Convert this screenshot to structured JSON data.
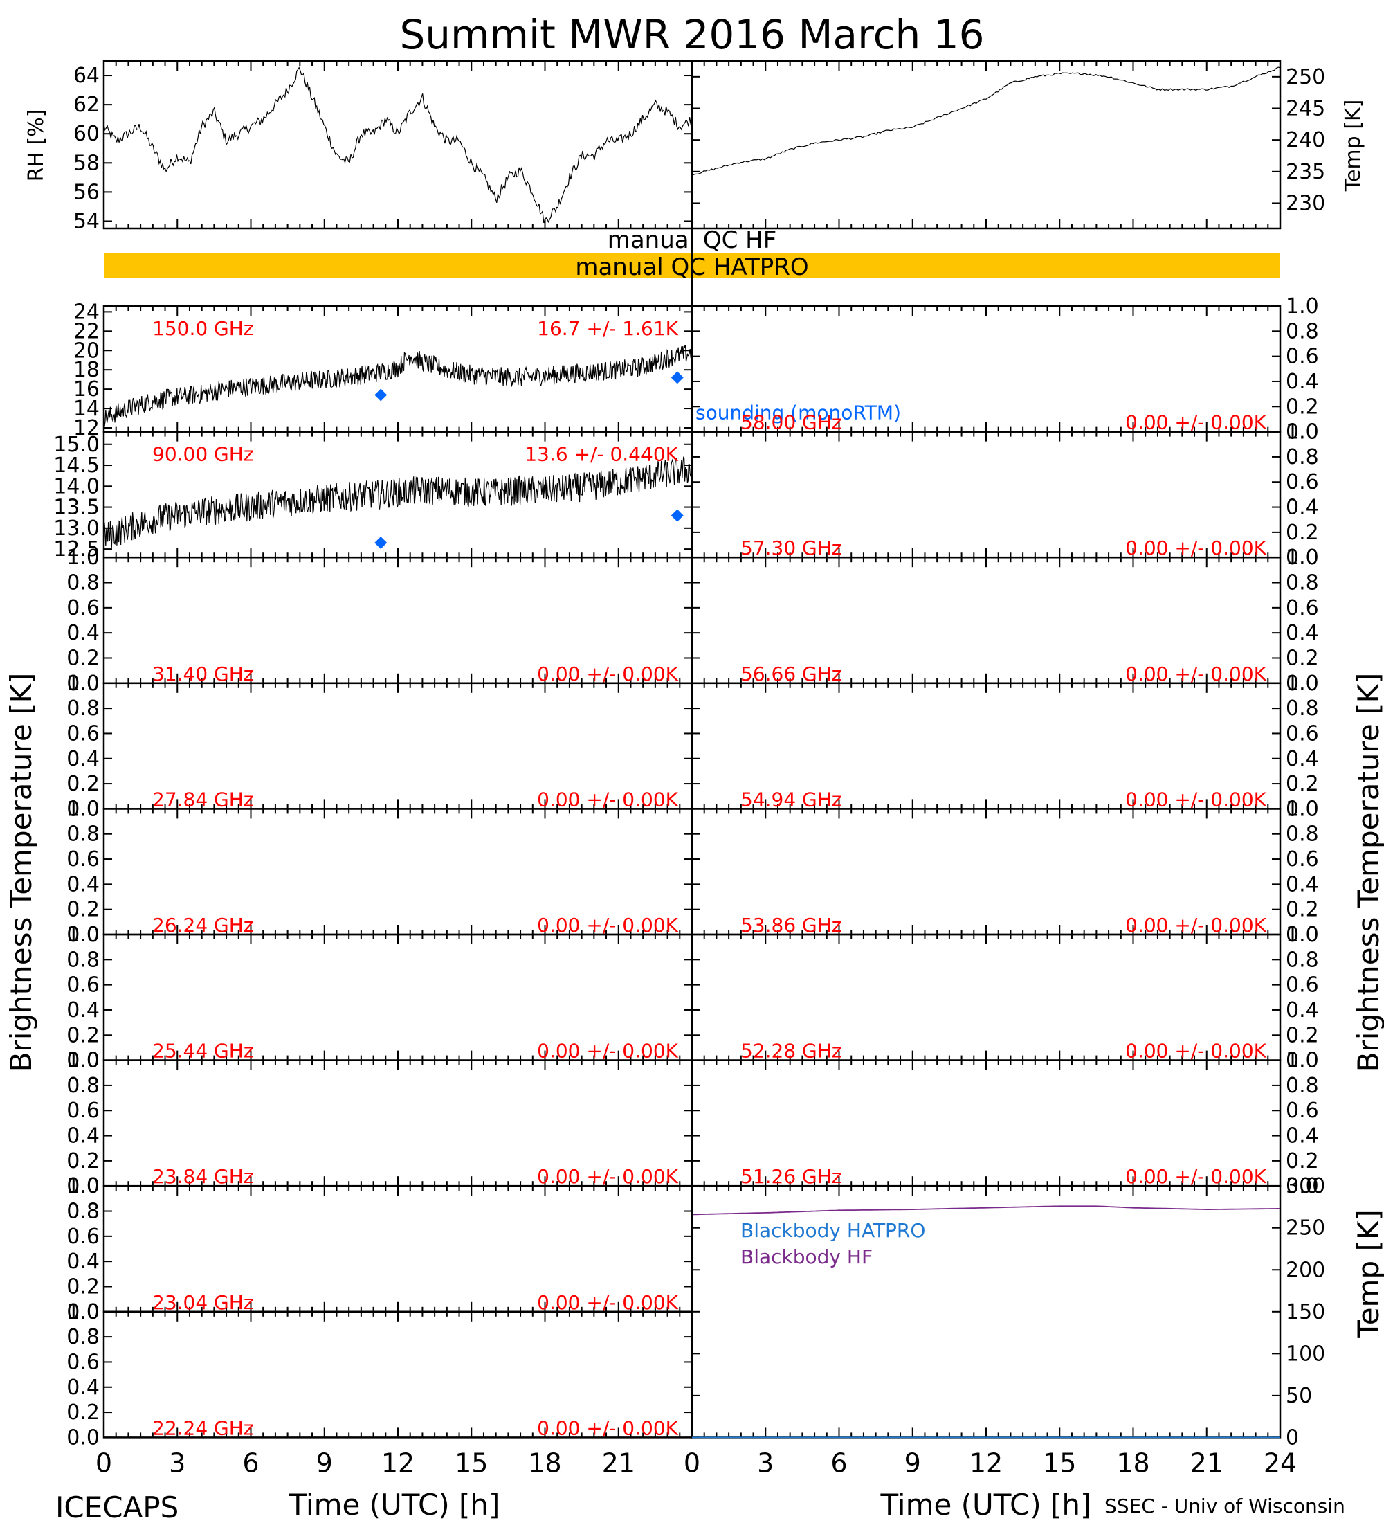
{
  "title": "Summit MWR 2016 March 16",
  "footer_left": "ICECAPS",
  "footer_right": "SSEC - Univ of Wisconsin",
  "xlabel": "Time (UTC) [h]",
  "xticks": [
    "0",
    "3",
    "6",
    "9",
    "12",
    "15",
    "18",
    "21",
    "24"
  ],
  "xticks_left": [
    "0",
    "3",
    "6",
    "9",
    "12",
    "15",
    "18",
    "21"
  ],
  "left_ylabel": "Brightness Temperature [K]",
  "right_ylabel": "Brightness Temperature [K]",
  "colors": {
    "annotation": "#ff0000",
    "sounding": "#0066ff",
    "qc_bar": "#ffc400",
    "bb_hatpro": "#1f78d1",
    "bb_hf": "#7a2a8a",
    "data": "#000000"
  },
  "qc": {
    "hf_label": "manual QC HF",
    "hatpro_label": "manual QC HATPRO"
  },
  "sounding_label": "sounding (monoRTM)",
  "met": {
    "rh": {
      "ylabel": "RH [%]",
      "ylim": [
        53.5,
        65
      ],
      "ticks": [
        "54",
        "56",
        "58",
        "60",
        "62",
        "64"
      ],
      "x": [
        0,
        0.5,
        1,
        1.5,
        2,
        2.5,
        3,
        3.5,
        4,
        4.5,
        5,
        5.5,
        6,
        6.5,
        7,
        7.5,
        8,
        8.5,
        9,
        9.5,
        10,
        10.5,
        11,
        11.5,
        12,
        12.5,
        13,
        13.5,
        14,
        14.5,
        15,
        15.5,
        16,
        16.5,
        17,
        17.5,
        18,
        18.5,
        19,
        19.5,
        20,
        20.5,
        21,
        21.5,
        22,
        22.5,
        23,
        23.5,
        24
      ],
      "y": [
        60.5,
        59.5,
        60.0,
        60.5,
        59.0,
        57.5,
        58.5,
        58.0,
        60.5,
        61.5,
        59.5,
        60.0,
        60.5,
        61.0,
        62.0,
        63.0,
        64.5,
        62.5,
        60.5,
        58.5,
        58.0,
        60.0,
        60.0,
        61.0,
        60.0,
        61.5,
        62.5,
        60.5,
        59.5,
        59.5,
        58.0,
        57.0,
        55.5,
        57.0,
        57.5,
        56.0,
        54.0,
        55.0,
        57.0,
        58.5,
        58.5,
        59.5,
        59.5,
        60.0,
        61.0,
        62.0,
        61.5,
        60.5,
        61.0
      ]
    },
    "temp": {
      "ylabel": "Temp [K]",
      "ylim": [
        226,
        252.5
      ],
      "ticks": [
        "230",
        "235",
        "240",
        "245",
        "250"
      ],
      "x": [
        0,
        1,
        2,
        3,
        4,
        5,
        6,
        7,
        8,
        9,
        10,
        11,
        12,
        13,
        14,
        15,
        16,
        17,
        18,
        19,
        20,
        21,
        22,
        23,
        24
      ],
      "y": [
        234.5,
        235.5,
        236.5,
        237.0,
        238.5,
        239.5,
        240.0,
        240.5,
        241.5,
        242.0,
        243.5,
        245.0,
        246.5,
        249.0,
        250.0,
        250.5,
        250.5,
        250.0,
        249.0,
        248.0,
        248.0,
        248.0,
        248.5,
        250.0,
        251.5
      ]
    }
  },
  "left_panels": [
    {
      "freq": "150.0 GHz",
      "stat": "16.7 +/-  1.61K",
      "ylim": [
        11.6,
        24.6
      ],
      "ticks": [
        "12",
        "14",
        "16",
        "18",
        "20",
        "22",
        "24"
      ],
      "x": [
        0,
        1,
        2,
        3,
        4,
        5,
        6,
        7,
        8,
        9,
        10,
        11,
        12,
        12.5,
        13,
        14,
        15,
        16,
        17,
        18,
        19,
        20,
        21,
        22,
        23,
        24
      ],
      "y": [
        13.0,
        14.0,
        14.8,
        15.2,
        15.5,
        16.0,
        16.3,
        16.5,
        16.8,
        17.0,
        17.3,
        17.6,
        18.2,
        19.5,
        18.8,
        18.0,
        17.5,
        17.3,
        17.2,
        17.4,
        17.6,
        17.8,
        18.0,
        18.3,
        19.2,
        19.8
      ],
      "noise": 1.0,
      "sounding": [
        {
          "x": 11.3,
          "y": 15.4
        },
        {
          "x": 23.4,
          "y": 17.2
        }
      ],
      "sounding_label": true
    },
    {
      "freq": "90.00 GHz",
      "stat": "13.6 +/- 0.440K",
      "ylim": [
        12.3,
        15.3
      ],
      "ticks": [
        "12.5",
        "13.0",
        "13.5",
        "14.0",
        "14.5",
        "15.0"
      ],
      "x": [
        0,
        1,
        2,
        3,
        4,
        5,
        6,
        7,
        8,
        9,
        10,
        11,
        12,
        13,
        14,
        15,
        16,
        17,
        18,
        19,
        20,
        21,
        22,
        23,
        24
      ],
      "y": [
        12.8,
        13.0,
        13.2,
        13.3,
        13.4,
        13.45,
        13.5,
        13.6,
        13.65,
        13.7,
        13.75,
        13.8,
        13.85,
        13.9,
        13.9,
        13.85,
        13.85,
        13.9,
        13.9,
        13.95,
        14.0,
        14.1,
        14.2,
        14.3,
        14.4
      ],
      "noise": 0.35,
      "sounding": [
        {
          "x": 11.3,
          "y": 12.65
        },
        {
          "x": 23.4,
          "y": 13.3
        }
      ]
    },
    {
      "freq": "31.40 GHz",
      "stat": "0.00 +/-  0.00K",
      "ylim": [
        0,
        1
      ],
      "ticks": [
        "0.0",
        "0.2",
        "0.4",
        "0.6",
        "0.8",
        "1.0"
      ]
    },
    {
      "freq": "27.84 GHz",
      "stat": "0.00 +/-  0.00K",
      "ylim": [
        0,
        1
      ],
      "ticks": [
        "0.0",
        "0.2",
        "0.4",
        "0.6",
        "0.8",
        "1.0"
      ]
    },
    {
      "freq": "26.24 GHz",
      "stat": "0.00 +/-  0.00K",
      "ylim": [
        0,
        1
      ],
      "ticks": [
        "0.0",
        "0.2",
        "0.4",
        "0.6",
        "0.8",
        "1.0"
      ]
    },
    {
      "freq": "25.44 GHz",
      "stat": "0.00 +/-  0.00K",
      "ylim": [
        0,
        1
      ],
      "ticks": [
        "0.0",
        "0.2",
        "0.4",
        "0.6",
        "0.8",
        "1.0"
      ]
    },
    {
      "freq": "23.84 GHz",
      "stat": "0.00 +/-  0.00K",
      "ylim": [
        0,
        1
      ],
      "ticks": [
        "0.0",
        "0.2",
        "0.4",
        "0.6",
        "0.8",
        "1.0"
      ]
    },
    {
      "freq": "23.04 GHz",
      "stat": "0.00 +/-  0.00K",
      "ylim": [
        0,
        1
      ],
      "ticks": [
        "0.0",
        "0.2",
        "0.4",
        "0.6",
        "0.8",
        "1.0"
      ]
    },
    {
      "freq": "22.24 GHz",
      "stat": "0.00 +/-  0.00K",
      "ylim": [
        0,
        1
      ],
      "ticks": [
        "0.0",
        "0.2",
        "0.4",
        "0.6",
        "0.8",
        "1.0"
      ]
    }
  ],
  "right_panels": [
    {
      "freq": "58.00 GHz",
      "stat": "0.00 +/-  0.00K",
      "ylim": [
        0,
        1
      ],
      "ticks": [
        "0.0",
        "0.2",
        "0.4",
        "0.6",
        "0.8",
        "1.0"
      ]
    },
    {
      "freq": "57.30 GHz",
      "stat": "0.00 +/-  0.00K",
      "ylim": [
        0,
        1
      ],
      "ticks": [
        "0.0",
        "0.2",
        "0.4",
        "0.6",
        "0.8",
        "1.0"
      ]
    },
    {
      "freq": "56.66 GHz",
      "stat": "0.00 +/-  0.00K",
      "ylim": [
        0,
        1
      ],
      "ticks": [
        "0.0",
        "0.2",
        "0.4",
        "0.6",
        "0.8",
        "1.0"
      ]
    },
    {
      "freq": "54.94 GHz",
      "stat": "0.00 +/-  0.00K",
      "ylim": [
        0,
        1
      ],
      "ticks": [
        "0.0",
        "0.2",
        "0.4",
        "0.6",
        "0.8",
        "1.0"
      ]
    },
    {
      "freq": "53.86 GHz",
      "stat": "0.00 +/-  0.00K",
      "ylim": [
        0,
        1
      ],
      "ticks": [
        "0.0",
        "0.2",
        "0.4",
        "0.6",
        "0.8",
        "1.0"
      ]
    },
    {
      "freq": "52.28 GHz",
      "stat": "0.00 +/-  0.00K",
      "ylim": [
        0,
        1
      ],
      "ticks": [
        "0.0",
        "0.2",
        "0.4",
        "0.6",
        "0.8",
        "1.0"
      ]
    },
    {
      "freq": "51.26 GHz",
      "stat": "0.00 +/-  0.00K",
      "ylim": [
        0,
        1
      ],
      "ticks": [
        "0.0",
        "0.2",
        "0.4",
        "0.6",
        "0.8",
        "1.0"
      ]
    }
  ],
  "blackbody": {
    "ylabel": "Temp [K]",
    "ylim": [
      0,
      300
    ],
    "ticks": [
      "0",
      "50",
      "100",
      "150",
      "200",
      "250",
      "300"
    ],
    "hatpro_label": "Blackbody HATPRO",
    "hf_label": "Blackbody HF",
    "x": [
      0,
      3,
      6,
      9,
      12,
      15,
      16.5,
      18,
      21,
      24
    ],
    "hf": [
      266,
      268,
      271,
      272,
      274,
      276,
      276,
      274,
      272,
      273
    ],
    "hatpro": [
      0,
      0,
      0,
      0,
      0,
      0,
      0,
      0,
      0,
      0
    ]
  }
}
